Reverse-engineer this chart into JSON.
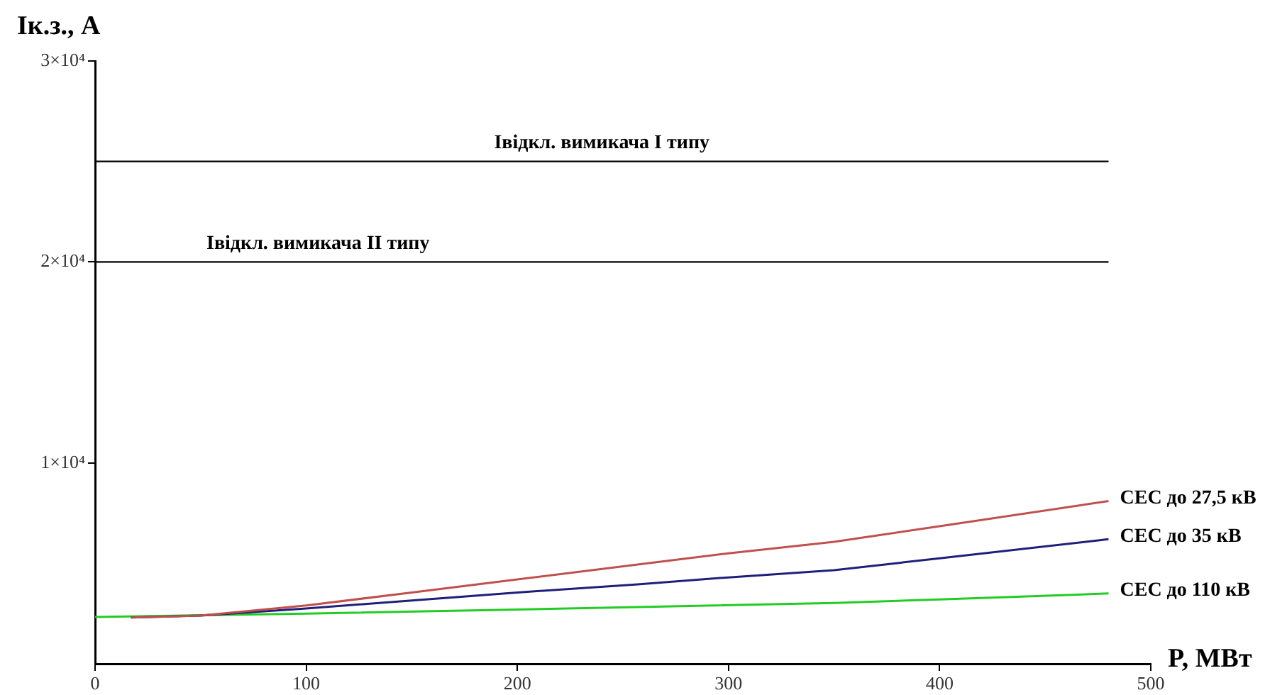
{
  "chart_data": {
    "type": "line",
    "xlabel": "P, МВт",
    "ylabel": "Ік.з., А",
    "xlim": [
      0,
      500
    ],
    "xticks": [
      0,
      100,
      200,
      300,
      400,
      500
    ],
    "ylim": [
      0,
      30000
    ],
    "yticks": [
      {
        "value": 10000,
        "label": "1×10⁴"
      },
      {
        "value": 20000,
        "label": "2×10⁴"
      },
      {
        "value": 30000,
        "label": "3×10⁴"
      }
    ],
    "series": [
      {
        "name": "СЕС до 27,5 кВ",
        "color": "#c0504d",
        "x": [
          17,
          50,
          100,
          150,
          200,
          257,
          300,
          350,
          400,
          480
        ],
        "values": [
          2300,
          2400,
          2900,
          3550,
          4200,
          4940,
          5500,
          6070,
          6850,
          8100
        ]
      },
      {
        "name": "СЕС до 35 кВ",
        "color": "#1f1f7a",
        "x": [
          17,
          50,
          100,
          150,
          200,
          257,
          300,
          350,
          400,
          480
        ],
        "values": [
          2300,
          2400,
          2750,
          3150,
          3550,
          3950,
          4300,
          4660,
          5250,
          6200
        ]
      },
      {
        "name": "СЕС до 110 кВ",
        "color": "#22cc22",
        "x": [
          0,
          100,
          200,
          257,
          350,
          400,
          480
        ],
        "values": [
          2330,
          2500,
          2700,
          2820,
          3030,
          3200,
          3500
        ]
      }
    ],
    "ref_lines": [
      {
        "axis": "y",
        "value": 25000,
        "label": "Івідкл. вимикача І типу",
        "color": "#000000"
      },
      {
        "axis": "y",
        "value": 20000,
        "label": "Івідкл. вимикача ІІ типу",
        "color": "#000000"
      }
    ]
  }
}
